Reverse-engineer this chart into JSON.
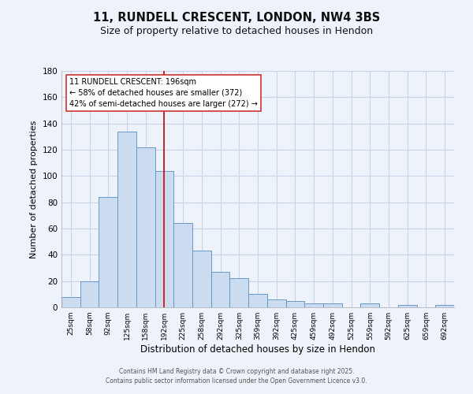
{
  "title": "11, RUNDELL CRESCENT, LONDON, NW4 3BS",
  "subtitle": "Size of property relative to detached houses in Hendon",
  "xlabel": "Distribution of detached houses by size in Hendon",
  "ylabel": "Number of detached properties",
  "bar_labels": [
    "25sqm",
    "58sqm",
    "92sqm",
    "125sqm",
    "158sqm",
    "192sqm",
    "225sqm",
    "258sqm",
    "292sqm",
    "325sqm",
    "359sqm",
    "392sqm",
    "425sqm",
    "459sqm",
    "492sqm",
    "525sqm",
    "559sqm",
    "592sqm",
    "625sqm",
    "659sqm",
    "692sqm"
  ],
  "bar_values": [
    8,
    20,
    84,
    134,
    122,
    104,
    64,
    43,
    27,
    22,
    10,
    6,
    5,
    3,
    3,
    0,
    3,
    0,
    2,
    0,
    2
  ],
  "bar_color": "#ccdcf0",
  "bar_edge_color": "#6699cc",
  "ylim": [
    0,
    180
  ],
  "yticks": [
    0,
    20,
    40,
    60,
    80,
    100,
    120,
    140,
    160,
    180
  ],
  "vline_color": "#cc0000",
  "annotation_title": "11 RUNDELL CRESCENT: 196sqm",
  "annotation_line1": "← 58% of detached houses are smaller (372)",
  "annotation_line2": "42% of semi-detached houses are larger (272) →",
  "footer1": "Contains HM Land Registry data © Crown copyright and database right 2025.",
  "footer2": "Contains public sector information licensed under the Open Government Licence v3.0.",
  "bg_color": "#eef2fb",
  "grid_color": "#d8e0f0",
  "title_fontsize": 10.5,
  "subtitle_fontsize": 9
}
